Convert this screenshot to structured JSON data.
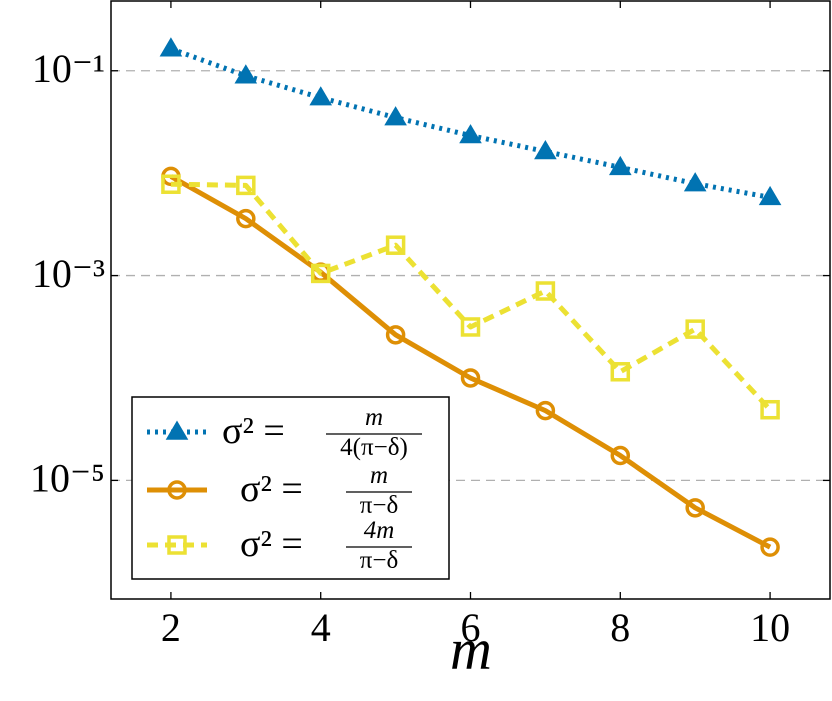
{
  "chart_data": {
    "type": "line",
    "log_y": true,
    "grid": true,
    "legend": "lower left",
    "x_label": "m",
    "x": [
      2,
      3,
      4,
      5,
      6,
      7,
      8,
      9,
      10
    ],
    "xlim": [
      1.2,
      10.8
    ],
    "xticks": [
      2,
      4,
      6,
      8,
      10
    ],
    "ylim": [
      6.95e-07,
      0.48
    ],
    "yticks": [
      {
        "value": 0.1,
        "label": "10⁻¹"
      },
      {
        "value": 0.001,
        "label": "10⁻³"
      },
      {
        "value": 1e-05,
        "label": "10⁻⁵"
      }
    ],
    "series": [
      {
        "name": "σ² = m/4(π−δ)",
        "color": "#0173b2",
        "linestyle": "dotted",
        "marker": "triangle",
        "values": [
          0.164,
          0.0894,
          0.0546,
          0.0349,
          0.0233,
          0.0163,
          0.0114,
          0.0079,
          0.0058
        ]
      },
      {
        "name": "σ² = m/π−δ",
        "color": "#de8f05",
        "linestyle": "solid",
        "marker": "circle",
        "values": [
          0.0093,
          0.0036,
          0.00108,
          0.000264,
          0.0001,
          4.8e-05,
          1.75e-05,
          5.4e-06,
          2.23e-06
        ]
      },
      {
        "name": "σ² = 4m/π−δ",
        "color": "#ece133",
        "linestyle": "dashed",
        "marker": "square",
        "values": [
          0.0078,
          0.0076,
          0.00105,
          0.00198,
          0.000315,
          0.000707,
          0.000115,
          0.0003,
          4.9e-05
        ]
      }
    ]
  }
}
